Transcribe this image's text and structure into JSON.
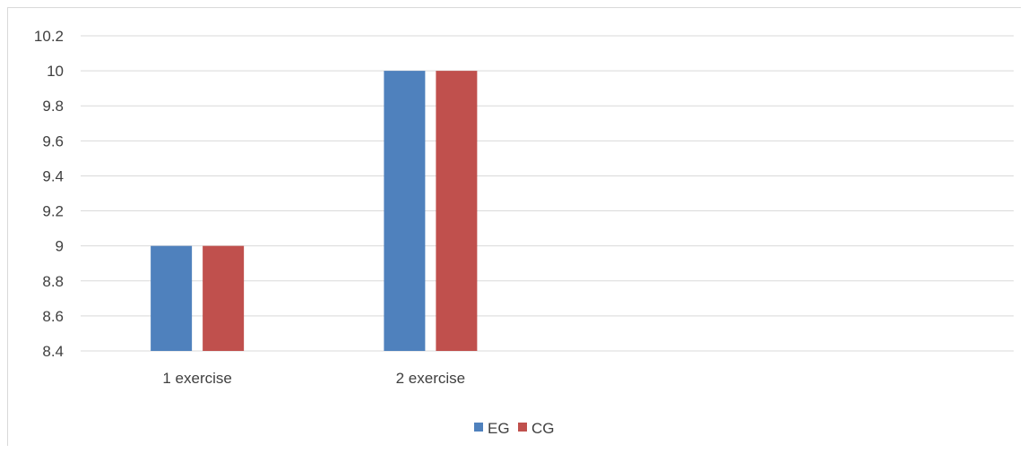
{
  "chart_data": {
    "type": "bar",
    "categories": [
      "1 exercise",
      "2 exercise",
      "",
      ""
    ],
    "series": [
      {
        "name": "EG",
        "values": [
          9,
          10,
          null,
          null
        ],
        "color": "#4f81bd"
      },
      {
        "name": "CG",
        "values": [
          9,
          10,
          null,
          null
        ],
        "color": "#c0504d"
      }
    ],
    "ylim": [
      8.4,
      10.2
    ],
    "yticks": [
      "8.4",
      "8.6",
      "8.8",
      "9",
      "9.2",
      "9.4",
      "9.6",
      "9.8",
      "10",
      "10.2"
    ],
    "grid": true,
    "legend": "bottom-center"
  }
}
